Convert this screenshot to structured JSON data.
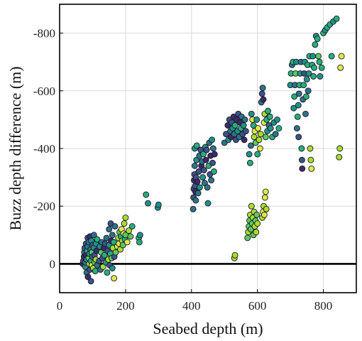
{
  "chart_data": {
    "type": "scatter",
    "title": "",
    "xlabel": "Seabed depth (m)",
    "ylabel": "Buzz depth difference (m)",
    "xlim": [
      0,
      900
    ],
    "ylim": [
      -100,
      900
    ],
    "y_axis_reversed_labels": true,
    "x_ticks": [
      0,
      200,
      400,
      600,
      800
    ],
    "x_tick_labels": [
      "0",
      "200",
      "400",
      "600",
      "800"
    ],
    "y_ticks": [
      0,
      200,
      400,
      600,
      800
    ],
    "y_tick_labels": [
      "0",
      "-200",
      "-400",
      "-600",
      "-800"
    ],
    "grid": true,
    "reference_line_y": 0,
    "colormap": [
      "#3b2a6b",
      "#3b528b",
      "#2c728e",
      "#21908d",
      "#27ad81",
      "#5cc863",
      "#aadc32",
      "#e0e84a"
    ],
    "points": [
      [
        70,
        0,
        0
      ],
      [
        72,
        10,
        1
      ],
      [
        74,
        25,
        0
      ],
      [
        75,
        40,
        2
      ],
      [
        76,
        55,
        1
      ],
      [
        78,
        -10,
        3
      ],
      [
        78,
        5,
        2
      ],
      [
        80,
        30,
        0
      ],
      [
        80,
        70,
        1
      ],
      [
        82,
        15,
        3
      ],
      [
        82,
        -30,
        2
      ],
      [
        84,
        45,
        4
      ],
      [
        85,
        60,
        2
      ],
      [
        85,
        90,
        1
      ],
      [
        86,
        -45,
        0
      ],
      [
        88,
        20,
        5
      ],
      [
        88,
        75,
        2
      ],
      [
        90,
        0,
        6
      ],
      [
        90,
        35,
        3
      ],
      [
        92,
        -20,
        1
      ],
      [
        92,
        95,
        0
      ],
      [
        94,
        50,
        2
      ],
      [
        95,
        -60,
        1
      ],
      [
        95,
        10,
        4
      ],
      [
        96,
        80,
        3
      ],
      [
        98,
        -5,
        7
      ],
      [
        98,
        40,
        5
      ],
      [
        100,
        25,
        2
      ],
      [
        100,
        65,
        1
      ],
      [
        102,
        -15,
        6
      ],
      [
        104,
        55,
        3
      ],
      [
        104,
        100,
        2
      ],
      [
        106,
        5,
        5
      ],
      [
        106,
        30,
        1
      ],
      [
        108,
        -25,
        4
      ],
      [
        110,
        70,
        3
      ],
      [
        110,
        15,
        6
      ],
      [
        112,
        45,
        0
      ],
      [
        114,
        -5,
        2
      ],
      [
        114,
        85,
        4
      ],
      [
        120,
        10,
        1
      ],
      [
        122,
        60,
        3
      ],
      [
        124,
        -20,
        2
      ],
      [
        126,
        40,
        5
      ],
      [
        128,
        75,
        2
      ],
      [
        130,
        20,
        1
      ],
      [
        132,
        -10,
        6
      ],
      [
        134,
        55,
        0
      ],
      [
        136,
        30,
        4
      ],
      [
        138,
        70,
        1
      ],
      [
        140,
        5,
        3
      ],
      [
        142,
        90,
        2
      ],
      [
        144,
        -30,
        4
      ],
      [
        146,
        45,
        1
      ],
      [
        148,
        15,
        6
      ],
      [
        150,
        65,
        3
      ],
      [
        150,
        120,
        2
      ],
      [
        152,
        -5,
        1
      ],
      [
        154,
        35,
        4
      ],
      [
        155,
        140,
        1
      ],
      [
        156,
        80,
        0
      ],
      [
        158,
        20,
        5
      ],
      [
        160,
        -15,
        3
      ],
      [
        160,
        100,
        2
      ],
      [
        162,
        55,
        6
      ],
      [
        164,
        75,
        4
      ],
      [
        165,
        -50,
        7
      ],
      [
        166,
        25,
        1
      ],
      [
        168,
        130,
        2
      ],
      [
        170,
        40,
        5
      ],
      [
        175,
        60,
        7
      ],
      [
        178,
        90,
        6
      ],
      [
        180,
        70,
        7
      ],
      [
        182,
        110,
        5
      ],
      [
        184,
        50,
        6
      ],
      [
        186,
        95,
        4
      ],
      [
        188,
        120,
        7
      ],
      [
        190,
        80,
        6
      ],
      [
        192,
        65,
        5
      ],
      [
        194,
        105,
        7
      ],
      [
        196,
        140,
        6
      ],
      [
        198,
        85,
        4
      ],
      [
        200,
        160,
        6
      ],
      [
        200,
        100,
        5
      ],
      [
        205,
        75,
        7
      ],
      [
        210,
        115,
        6
      ],
      [
        215,
        95,
        5
      ],
      [
        220,
        130,
        4
      ],
      [
        240,
        90,
        4
      ],
      [
        242,
        75,
        4
      ],
      [
        244,
        100,
        3
      ],
      [
        262,
        240,
        4
      ],
      [
        268,
        210,
        3
      ],
      [
        298,
        195,
        3
      ],
      [
        300,
        205,
        3
      ],
      [
        405,
        190,
        2
      ],
      [
        406,
        230,
        1
      ],
      [
        407,
        260,
        1
      ],
      [
        408,
        290,
        0
      ],
      [
        409,
        310,
        1
      ],
      [
        410,
        340,
        2
      ],
      [
        410,
        400,
        3
      ],
      [
        411,
        270,
        1
      ],
      [
        412,
        250,
        0
      ],
      [
        413,
        220,
        2
      ],
      [
        414,
        300,
        1
      ],
      [
        415,
        360,
        3
      ],
      [
        416,
        410,
        4
      ],
      [
        418,
        285,
        0
      ],
      [
        420,
        245,
        2
      ],
      [
        422,
        320,
        1
      ],
      [
        424,
        375,
        2
      ],
      [
        425,
        265,
        3
      ],
      [
        428,
        395,
        1
      ],
      [
        430,
        340,
        0
      ],
      [
        432,
        355,
        2
      ],
      [
        434,
        300,
        3
      ],
      [
        436,
        380,
        4
      ],
      [
        438,
        325,
        1
      ],
      [
        440,
        280,
        2
      ],
      [
        442,
        405,
        3
      ],
      [
        444,
        360,
        0
      ],
      [
        446,
        395,
        1
      ],
      [
        448,
        265,
        2
      ],
      [
        450,
        210,
        3
      ],
      [
        452,
        340,
        4
      ],
      [
        454,
        420,
        2
      ],
      [
        456,
        310,
        1
      ],
      [
        458,
        375,
        0
      ],
      [
        460,
        290,
        2
      ],
      [
        462,
        430,
        3
      ],
      [
        464,
        350,
        1
      ],
      [
        466,
        400,
        2
      ],
      [
        468,
        320,
        4
      ],
      [
        470,
        380,
        0
      ],
      [
        500,
        420,
        2
      ],
      [
        505,
        450,
        1
      ],
      [
        510,
        480,
        0
      ],
      [
        512,
        430,
        3
      ],
      [
        515,
        500,
        1
      ],
      [
        518,
        460,
        2
      ],
      [
        520,
        440,
        0
      ],
      [
        522,
        490,
        1
      ],
      [
        525,
        470,
        3
      ],
      [
        528,
        510,
        0
      ],
      [
        530,
        450,
        2
      ],
      [
        532,
        480,
        4
      ],
      [
        535,
        430,
        1
      ],
      [
        538,
        500,
        0
      ],
      [
        540,
        460,
        3
      ],
      [
        542,
        520,
        1
      ],
      [
        545,
        440,
        2
      ],
      [
        548,
        490,
        0
      ],
      [
        550,
        470,
        4
      ],
      [
        552,
        510,
        2
      ],
      [
        555,
        450,
        1
      ],
      [
        558,
        480,
        3
      ],
      [
        560,
        430,
        0
      ],
      [
        562,
        500,
        2
      ],
      [
        565,
        460,
        1
      ],
      [
        575,
        380,
        3
      ],
      [
        578,
        350,
        4
      ],
      [
        580,
        410,
        2
      ],
      [
        582,
        520,
        3
      ],
      [
        585,
        500,
        7
      ],
      [
        588,
        480,
        4
      ],
      [
        590,
        440,
        6
      ],
      [
        592,
        460,
        7
      ],
      [
        595,
        420,
        5
      ],
      [
        598,
        500,
        3
      ],
      [
        600,
        380,
        4
      ],
      [
        602,
        470,
        7
      ],
      [
        605,
        430,
        6
      ],
      [
        608,
        400,
        7
      ],
      [
        610,
        450,
        6
      ],
      [
        612,
        560,
        2
      ],
      [
        614,
        590,
        1
      ],
      [
        616,
        610,
        2
      ],
      [
        618,
        570,
        0
      ],
      [
        620,
        490,
        7
      ],
      [
        622,
        520,
        6
      ],
      [
        625,
        440,
        5
      ],
      [
        628,
        500,
        4
      ],
      [
        630,
        460,
        3
      ],
      [
        632,
        530,
        4
      ],
      [
        635,
        480,
        2
      ],
      [
        638,
        510,
        4
      ],
      [
        640,
        470,
        3
      ],
      [
        645,
        440,
        4
      ],
      [
        650,
        490,
        3
      ],
      [
        655,
        450,
        2
      ],
      [
        660,
        500,
        3
      ],
      [
        665,
        470,
        4
      ],
      [
        530,
        20,
        6
      ],
      [
        532,
        30,
        6
      ],
      [
        570,
        90,
        5
      ],
      [
        572,
        110,
        6
      ],
      [
        574,
        130,
        5
      ],
      [
        576,
        150,
        5
      ],
      [
        578,
        170,
        6
      ],
      [
        580,
        120,
        5
      ],
      [
        582,
        200,
        6
      ],
      [
        584,
        140,
        5
      ],
      [
        586,
        160,
        6
      ],
      [
        588,
        100,
        5
      ],
      [
        590,
        180,
        6
      ],
      [
        592,
        130,
        6
      ],
      [
        594,
        150,
        5
      ],
      [
        596,
        110,
        6
      ],
      [
        598,
        170,
        5
      ],
      [
        600,
        140,
        6
      ],
      [
        615,
        160,
        6
      ],
      [
        617,
        180,
        7
      ],
      [
        619,
        200,
        6
      ],
      [
        621,
        170,
        7
      ],
      [
        623,
        230,
        7
      ],
      [
        625,
        250,
        7
      ],
      [
        627,
        190,
        6
      ],
      [
        700,
        620,
        3
      ],
      [
        702,
        660,
        4
      ],
      [
        705,
        690,
        2
      ],
      [
        708,
        700,
        4
      ],
      [
        710,
        540,
        3
      ],
      [
        712,
        580,
        4
      ],
      [
        714,
        620,
        2
      ],
      [
        716,
        660,
        5
      ],
      [
        718,
        700,
        3
      ],
      [
        720,
        470,
        2
      ],
      [
        722,
        510,
        4
      ],
      [
        724,
        550,
        3
      ],
      [
        725,
        440,
        1
      ],
      [
        726,
        590,
        2
      ],
      [
        728,
        620,
        4
      ],
      [
        730,
        660,
        3
      ],
      [
        732,
        700,
        2
      ],
      [
        734,
        400,
        4
      ],
      [
        735,
        360,
        1
      ],
      [
        736,
        330,
        0
      ],
      [
        738,
        570,
        2
      ],
      [
        740,
        620,
        4
      ],
      [
        742,
        660,
        1
      ],
      [
        744,
        700,
        3
      ],
      [
        746,
        520,
        2
      ],
      [
        748,
        580,
        4
      ],
      [
        750,
        640,
        3
      ],
      [
        752,
        690,
        4
      ],
      [
        754,
        600,
        2
      ],
      [
        756,
        660,
        3
      ],
      [
        758,
        720,
        4
      ],
      [
        760,
        400,
        6
      ],
      [
        762,
        360,
        6
      ],
      [
        764,
        330,
        7
      ],
      [
        766,
        690,
        4
      ],
      [
        768,
        720,
        3
      ],
      [
        770,
        650,
        4
      ],
      [
        772,
        680,
        4
      ],
      [
        775,
        760,
        4
      ],
      [
        778,
        790,
        3
      ],
      [
        782,
        780,
        4
      ],
      [
        785,
        720,
        5
      ],
      [
        788,
        700,
        4
      ],
      [
        790,
        650,
        3
      ],
      [
        795,
        680,
        4
      ],
      [
        800,
        800,
        4
      ],
      [
        806,
        810,
        3
      ],
      [
        812,
        820,
        4
      ],
      [
        820,
        830,
        4
      ],
      [
        825,
        720,
        4
      ],
      [
        830,
        840,
        3
      ],
      [
        840,
        850,
        4
      ],
      [
        848,
        370,
        6
      ],
      [
        850,
        400,
        6
      ],
      [
        852,
        680,
        7
      ],
      [
        855,
        720,
        7
      ]
    ]
  }
}
